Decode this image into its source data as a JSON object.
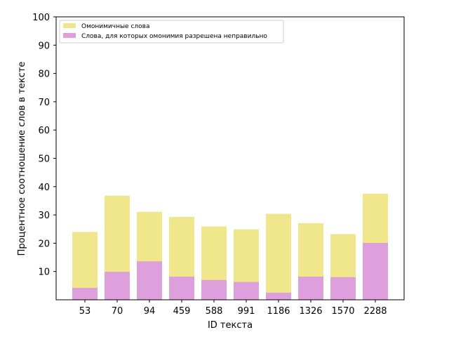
{
  "chart_data": {
    "type": "bar",
    "stacked": "overlaid",
    "categories": [
      "53",
      "70",
      "94",
      "459",
      "588",
      "991",
      "1186",
      "1326",
      "1570",
      "2288"
    ],
    "series": [
      {
        "name": "Омонимичные слова",
        "color": "#f0e68c",
        "values": [
          24.0,
          36.8,
          31.1,
          29.3,
          25.9,
          24.9,
          30.4,
          27.1,
          23.2,
          37.5
        ]
      },
      {
        "name": "Слова, для которых омонимия разрешена неправильно",
        "color": "#dda0dd",
        "values": [
          4.2,
          9.9,
          13.6,
          8.2,
          7.0,
          6.3,
          2.5,
          8.2,
          8.0,
          20.1
        ]
      }
    ],
    "xlabel": "ID текста",
    "ylabel": "Процентное соотношение слов в тексте",
    "ylim": [
      0,
      100
    ],
    "yticks": [
      10,
      20,
      30,
      40,
      50,
      60,
      70,
      80,
      90,
      100
    ],
    "grid": false,
    "legend_position": "top-left"
  }
}
